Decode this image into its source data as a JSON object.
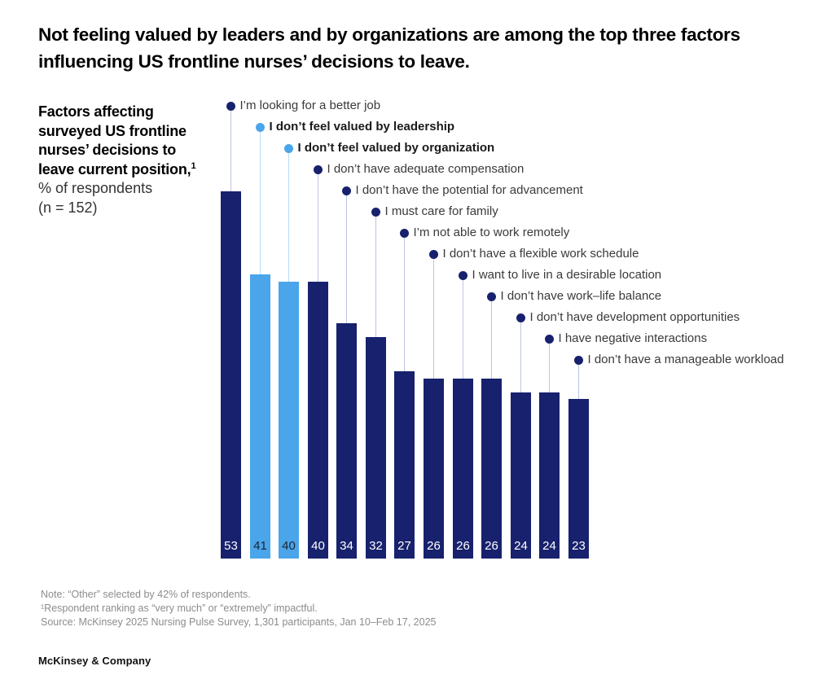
{
  "page_title": "Not feeling valued by leaders and by organizations are among the top three factors influencing US frontline nurses’ decisions to leave.",
  "chart_header": {
    "heading": "Factors affecting surveyed US frontline nurses’ decisions to leave current position,",
    "heading_note_ref": "1",
    "subheading": "% of respondents",
    "sample": "(n = 152)"
  },
  "chart_data": {
    "type": "bar",
    "title": "Factors affecting surveyed US frontline nurses’ decisions to leave current position, % of respondents (n = 152)",
    "unit": "%",
    "ylim": [
      0,
      53
    ],
    "grid": false,
    "legend": "none",
    "categories": [
      "I’m looking for a better job",
      "I don’t feel valued by leadership",
      "I don’t feel valued by organization",
      "I don’t have adequate compensation",
      "I don’t have the potential for advancement",
      "I must care for family",
      "I’m not able to work remotely",
      "I don’t have a flexible work schedule",
      "I want to live in a desirable location",
      "I don’t have work–life balance",
      "I don’t have development opportunities",
      "I have negative interactions",
      "I don’t have a manageable workload"
    ],
    "values": [
      53,
      41,
      40,
      40,
      34,
      32,
      27,
      26,
      26,
      26,
      24,
      24,
      23
    ],
    "emphasized_indices": [
      1,
      2
    ]
  },
  "colors": {
    "bar_navy": "#17216d",
    "bar_light_blue": "#4aa5ea",
    "leader_navy": "#bcc3e5",
    "leader_light_blue": "#b9dcf7",
    "value_on_navy": "#ffffff",
    "value_on_light": "#1f2433",
    "label_text": "#3a3a3a",
    "footnote_text": "#8c8c8c"
  },
  "footnotes": [
    "Note: “Other” selected by 42% of respondents.",
    "¹Respondent ranking as “very much” or “extremely” impactful.",
    "Source: McKinsey 2025 Nursing Pulse Survey, 1,301 participants, Jan 10–Feb 17, 2025"
  ],
  "brand": "McKinsey & Company"
}
